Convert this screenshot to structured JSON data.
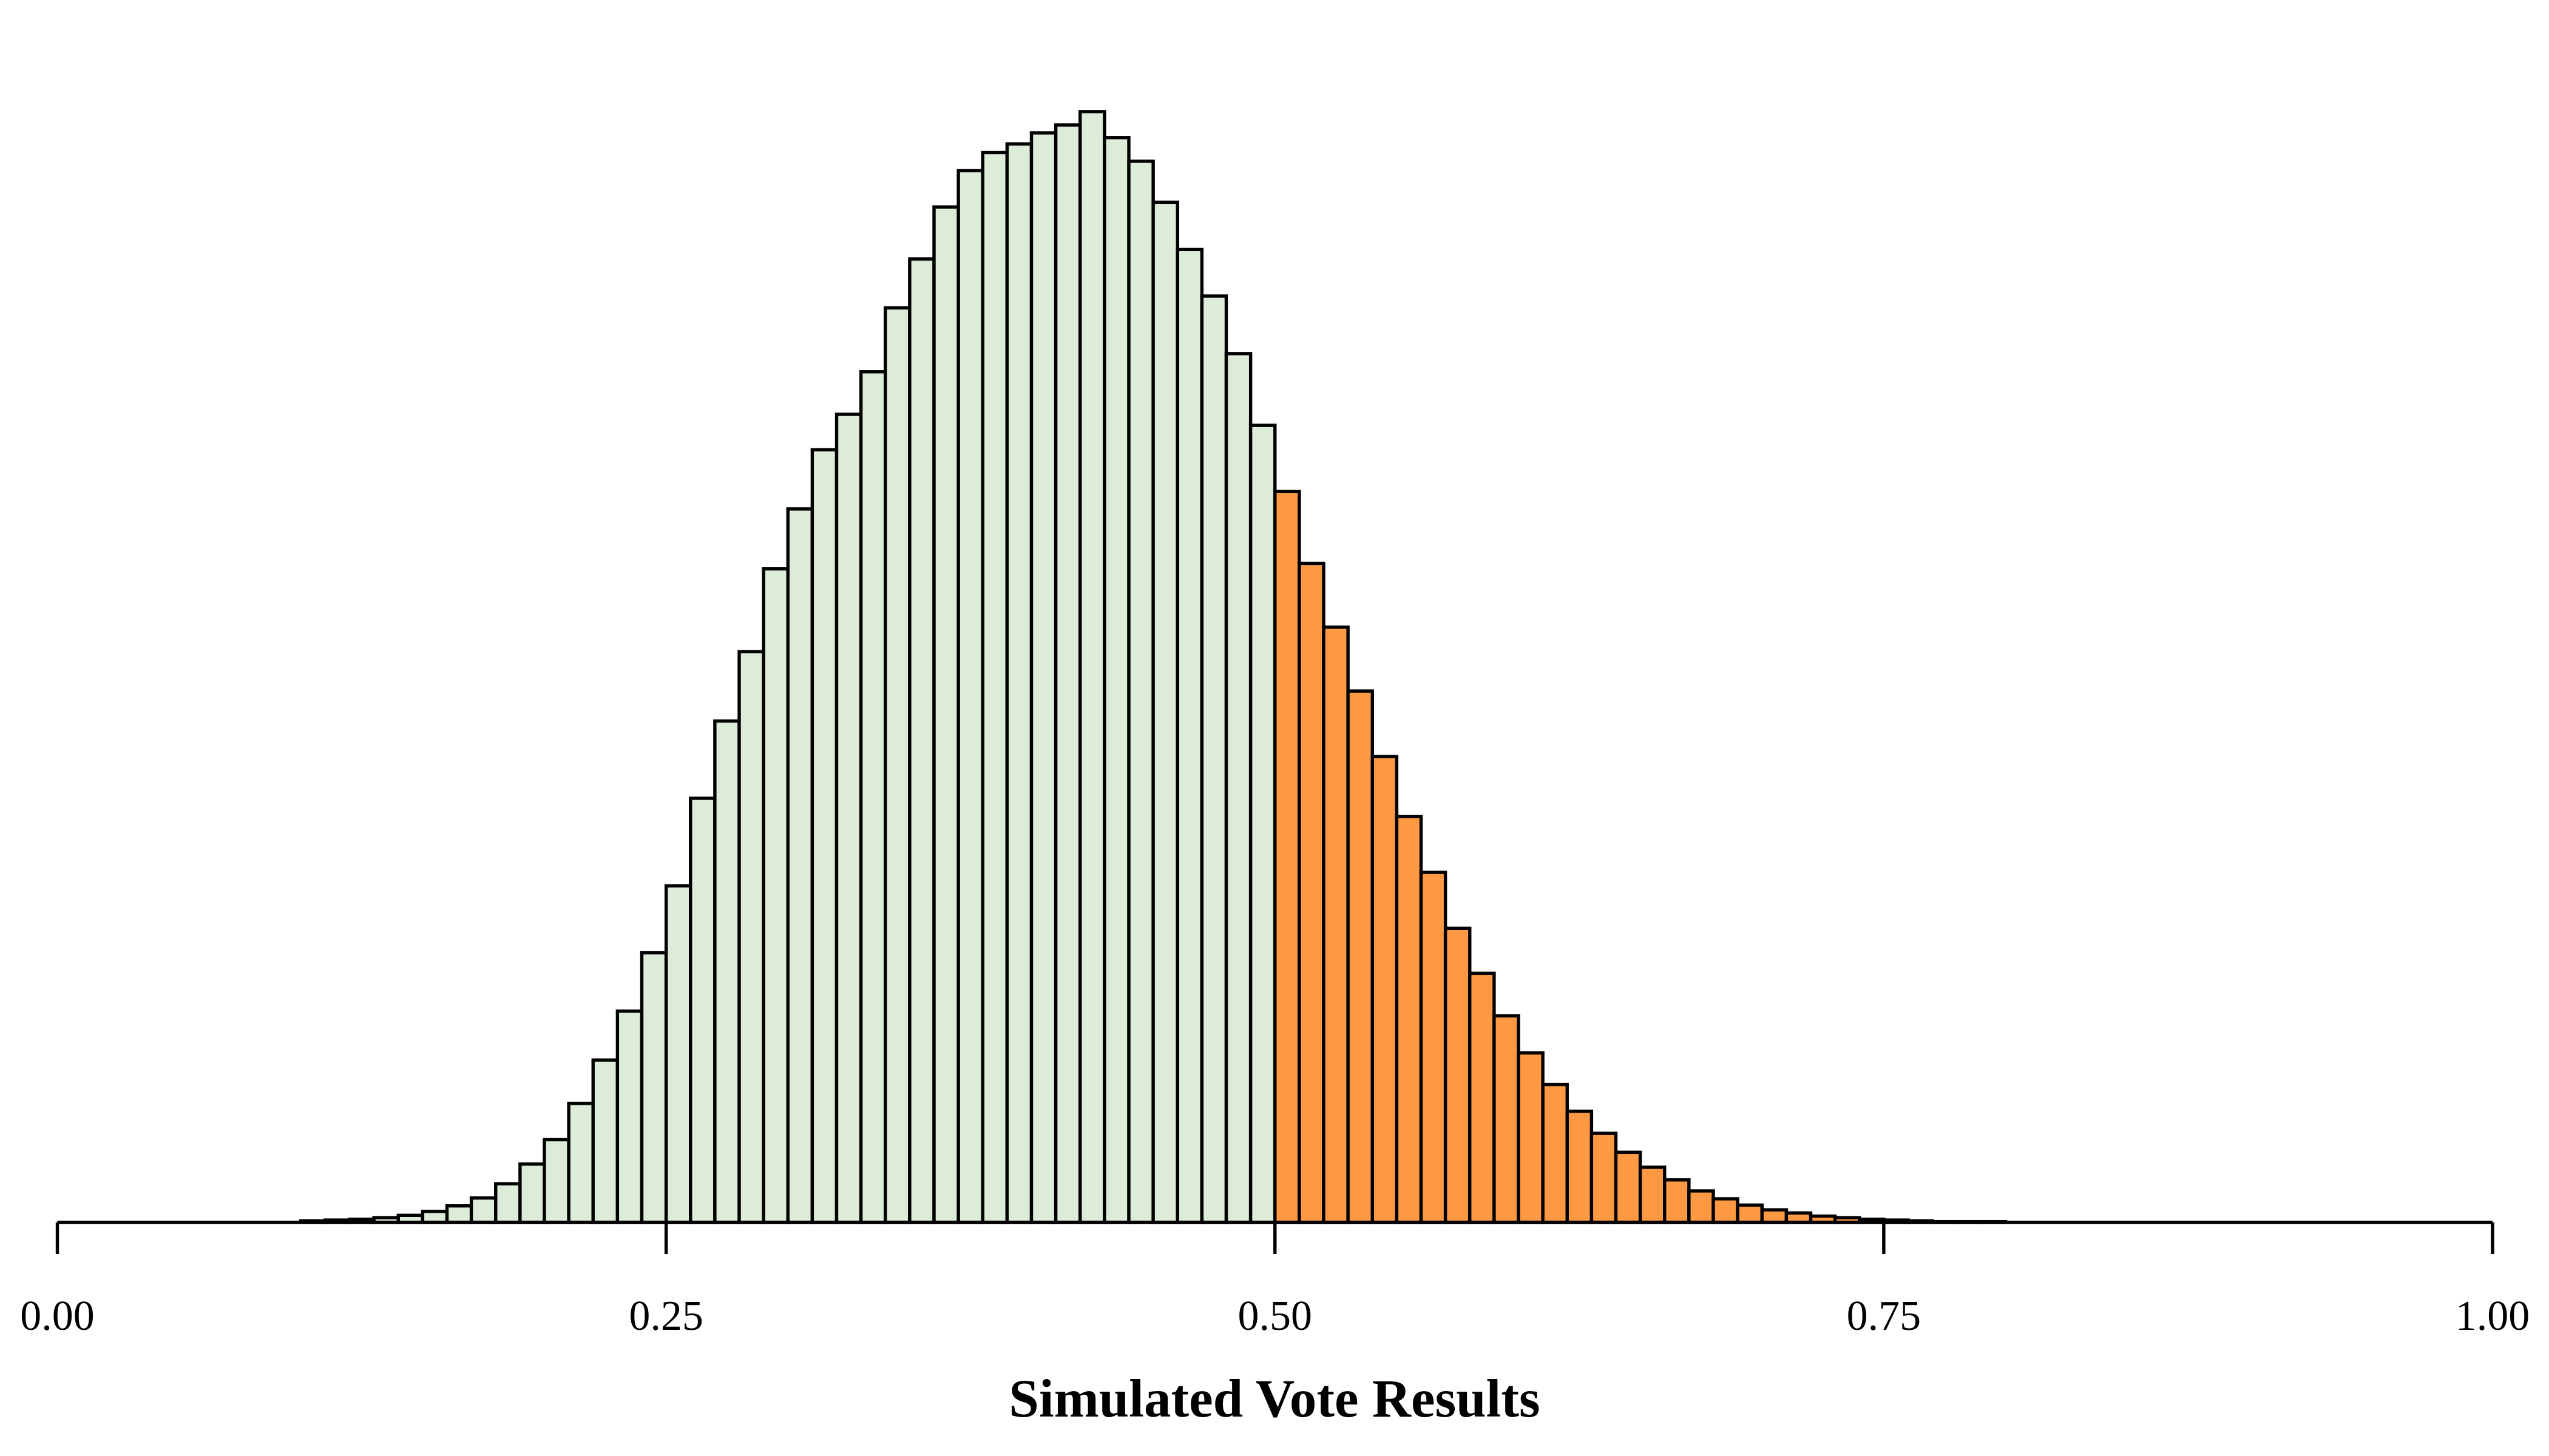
{
  "chart_data": {
    "type": "bar",
    "subtype": "histogram",
    "title": "",
    "xlabel": "Simulated Vote Results",
    "ylabel": "",
    "xlim": [
      0,
      1
    ],
    "ylim": [
      0,
      0.1
    ],
    "xticks": [
      0,
      0.25,
      0.5,
      0.75,
      1
    ],
    "xtick_labels": [
      "0.00",
      "0.25",
      "0.50",
      "0.75",
      "1.00"
    ],
    "y_axis_shown": false,
    "grid": false,
    "threshold": 0.5,
    "colors": {
      "below_threshold": "#dcecd8",
      "above_threshold": "#fe9943",
      "outline": "#000000"
    },
    "bin_width": 0.01,
    "bin_starts": [
      0.1,
      0.11,
      0.12,
      0.13,
      0.14,
      0.15,
      0.16,
      0.17,
      0.18,
      0.19,
      0.2,
      0.21,
      0.22,
      0.23,
      0.24,
      0.25,
      0.26,
      0.27,
      0.28,
      0.29,
      0.3,
      0.31,
      0.32,
      0.33,
      0.34,
      0.35,
      0.36,
      0.37,
      0.38,
      0.39,
      0.4,
      0.41,
      0.42,
      0.43,
      0.44,
      0.45,
      0.46,
      0.47,
      0.48,
      0.49,
      0.5,
      0.51,
      0.52,
      0.53,
      0.54,
      0.55,
      0.56,
      0.57,
      0.58,
      0.59,
      0.6,
      0.61,
      0.62,
      0.63,
      0.64,
      0.65,
      0.66,
      0.67,
      0.68,
      0.69,
      0.7,
      0.71,
      0.72,
      0.73,
      0.74,
      0.75,
      0.76,
      0.77,
      0.78,
      0.79
    ],
    "values": [
      0.0002,
      0.0003,
      0.0004,
      0.0006,
      0.0009,
      0.0014,
      0.0021,
      0.0031,
      0.0049,
      0.0074,
      0.0105,
      0.0151,
      0.0206,
      0.0268,
      0.0342,
      0.0427,
      0.0538,
      0.0636,
      0.0724,
      0.0829,
      0.0905,
      0.098,
      0.1025,
      0.1079,
      0.116,
      0.1222,
      0.1288,
      0.1334,
      0.1357,
      0.1368,
      0.1382,
      0.1392,
      0.1409,
      0.1376,
      0.1346,
      0.1294,
      0.1234,
      0.1175,
      0.1102,
      0.1011,
      0.0927,
      0.0836,
      0.0755,
      0.0674,
      0.0591,
      0.0515,
      0.0444,
      0.0373,
      0.0316,
      0.0262,
      0.0215,
      0.0175,
      0.0141,
      0.0113,
      0.0089,
      0.007,
      0.0054,
      0.004,
      0.003,
      0.0022,
      0.0016,
      0.0012,
      0.0008,
      0.0006,
      0.0004,
      0.0003,
      0.0002,
      0.0001,
      0.0001,
      0.0001
    ]
  }
}
